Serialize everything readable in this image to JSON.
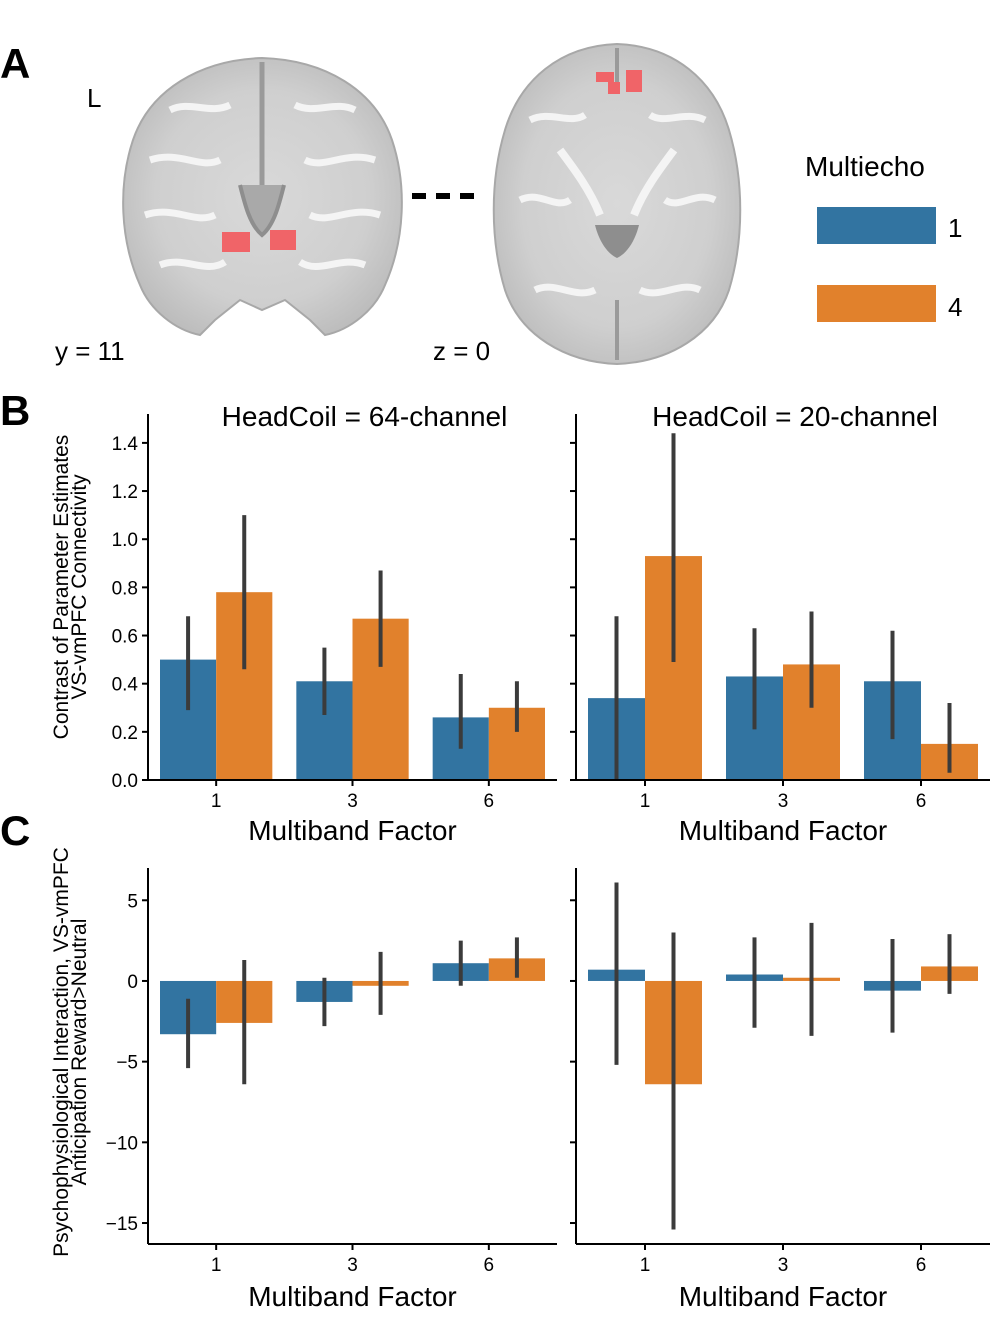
{
  "panels": {
    "a": "A",
    "b": "B",
    "c": "C"
  },
  "brain": {
    "side_label": "L",
    "coronal_label": "y = 11",
    "axial_label": "z = 0"
  },
  "legend": {
    "title": "Multiecho",
    "entries": [
      {
        "label": "1",
        "color": "#3274a1"
      },
      {
        "label": "4",
        "color": "#e1812c"
      }
    ]
  },
  "colors": {
    "multiecho_1": "#3274a1",
    "multiecho_4": "#e1812c",
    "error_bar": "#3b3b3b",
    "roi": "#f06468"
  },
  "chart_data": [
    {
      "type": "bar",
      "panel": "B",
      "title": "HeadCoil = 64-channel",
      "xlabel": "Multiband Factor",
      "ylabel": [
        "Contrast of Parameter Estimates",
        "VS-vmPFC Connectivity"
      ],
      "categories": [
        "1",
        "3",
        "6"
      ],
      "yticks": [
        0.0,
        0.2,
        0.4,
        0.6,
        0.8,
        1.0,
        1.2,
        1.4
      ],
      "ytick_labels": [
        "0.0",
        "0.2",
        "0.4",
        "0.6",
        "0.8",
        "1.0",
        "1.2",
        "1.4"
      ],
      "ylim": [
        0,
        1.52
      ],
      "series": [
        {
          "name": "1",
          "values": [
            0.5,
            0.41,
            0.26
          ],
          "err_low": [
            0.29,
            0.27,
            0.13
          ],
          "err_high": [
            0.68,
            0.55,
            0.44
          ]
        },
        {
          "name": "4",
          "values": [
            0.78,
            0.67,
            0.3
          ],
          "err_low": [
            0.46,
            0.47,
            0.2
          ],
          "err_high": [
            1.1,
            0.87,
            0.41
          ]
        }
      ]
    },
    {
      "type": "bar",
      "panel": "B",
      "title": "HeadCoil = 20-channel",
      "xlabel": "Multiband Factor",
      "categories": [
        "1",
        "3",
        "6"
      ],
      "yticks": [
        0.0,
        0.2,
        0.4,
        0.6,
        0.8,
        1.0,
        1.2,
        1.4
      ],
      "ylim": [
        0,
        1.52
      ],
      "series": [
        {
          "name": "1",
          "values": [
            0.34,
            0.43,
            0.41
          ],
          "err_low": [
            0.0,
            0.21,
            0.17
          ],
          "err_high": [
            0.68,
            0.63,
            0.62
          ]
        },
        {
          "name": "4",
          "values": [
            0.93,
            0.48,
            0.15
          ],
          "err_low": [
            0.49,
            0.3,
            0.03
          ],
          "err_high": [
            1.44,
            0.7,
            0.32
          ]
        }
      ]
    },
    {
      "type": "bar",
      "panel": "C",
      "xlabel": "Multiband Factor",
      "ylabel": [
        "Psychophysiological Interaction, VS-vmPFC",
        "Anticipation Reward>Neutral"
      ],
      "categories": [
        "1",
        "3",
        "6"
      ],
      "yticks": [
        5,
        0,
        -5,
        -10,
        -15
      ],
      "ytick_labels": [
        "5",
        "0",
        "−5",
        "−10",
        "−15"
      ],
      "ylim": [
        -16.3,
        7
      ],
      "series": [
        {
          "name": "1",
          "values": [
            -3.3,
            -1.3,
            1.1
          ],
          "err_low": [
            -5.4,
            -2.8,
            -0.3
          ],
          "err_high": [
            -1.1,
            0.2,
            2.5
          ]
        },
        {
          "name": "4",
          "values": [
            -2.6,
            -0.3,
            1.4
          ],
          "err_low": [
            -6.4,
            -2.1,
            0.2
          ],
          "err_high": [
            1.3,
            1.8,
            2.7
          ]
        }
      ]
    },
    {
      "type": "bar",
      "panel": "C",
      "xlabel": "Multiband Factor",
      "categories": [
        "1",
        "3",
        "6"
      ],
      "yticks": [
        5,
        0,
        -5,
        -10,
        -15
      ],
      "ylim": [
        -16.3,
        7
      ],
      "series": [
        {
          "name": "1",
          "values": [
            0.7,
            0.4,
            -0.6
          ],
          "err_low": [
            -5.2,
            -2.9,
            -3.2
          ],
          "err_high": [
            6.1,
            2.7,
            2.6
          ]
        },
        {
          "name": "4",
          "values": [
            -6.4,
            0.2,
            0.9
          ],
          "err_low": [
            -15.4,
            -3.4,
            -0.8
          ],
          "err_high": [
            3.0,
            3.6,
            2.9
          ]
        }
      ]
    }
  ]
}
